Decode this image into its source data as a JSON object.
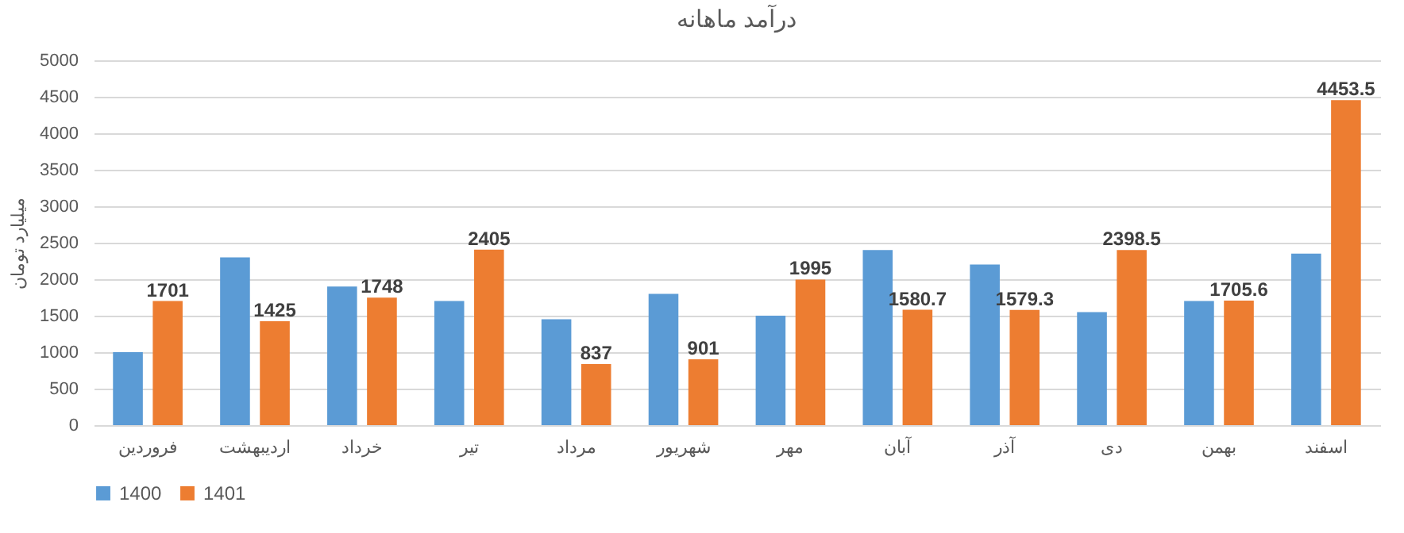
{
  "chart_data": {
    "type": "bar",
    "title": "درآمد ماهانه",
    "ylabel": "میلیارد تومان",
    "categories": [
      "فروردین",
      "اردیبهشت",
      "خرداد",
      "تیر",
      "مرداد",
      "شهریور",
      "مهر",
      "آبان",
      "آذر",
      "دی",
      "بهمن",
      "اسفند"
    ],
    "series": [
      {
        "name": "1400",
        "color": "#5b9bd5",
        "values": [
          1000,
          2300,
          1900,
          1700,
          1450,
          1800,
          1500,
          2400,
          2200,
          1550,
          1700,
          2350
        ]
      },
      {
        "name": "1401",
        "color": "#ed7d31",
        "values": [
          1701,
          1425,
          1748,
          2405,
          837,
          901,
          1995,
          1580.7,
          1579.3,
          2398.5,
          1705.6,
          4453.5
        ],
        "value_labels": [
          "1701",
          "1425",
          "1748",
          "2405",
          "837",
          "901",
          "1995",
          "1580.7",
          "1579.3",
          "2398.5",
          "1705.6",
          "4453.5"
        ]
      }
    ],
    "ylim": [
      0,
      5000
    ],
    "yticks": [
      0,
      500,
      1000,
      1500,
      2000,
      2500,
      3000,
      3500,
      4000,
      4500,
      5000
    ],
    "grid": "y",
    "legend": "bottom"
  }
}
